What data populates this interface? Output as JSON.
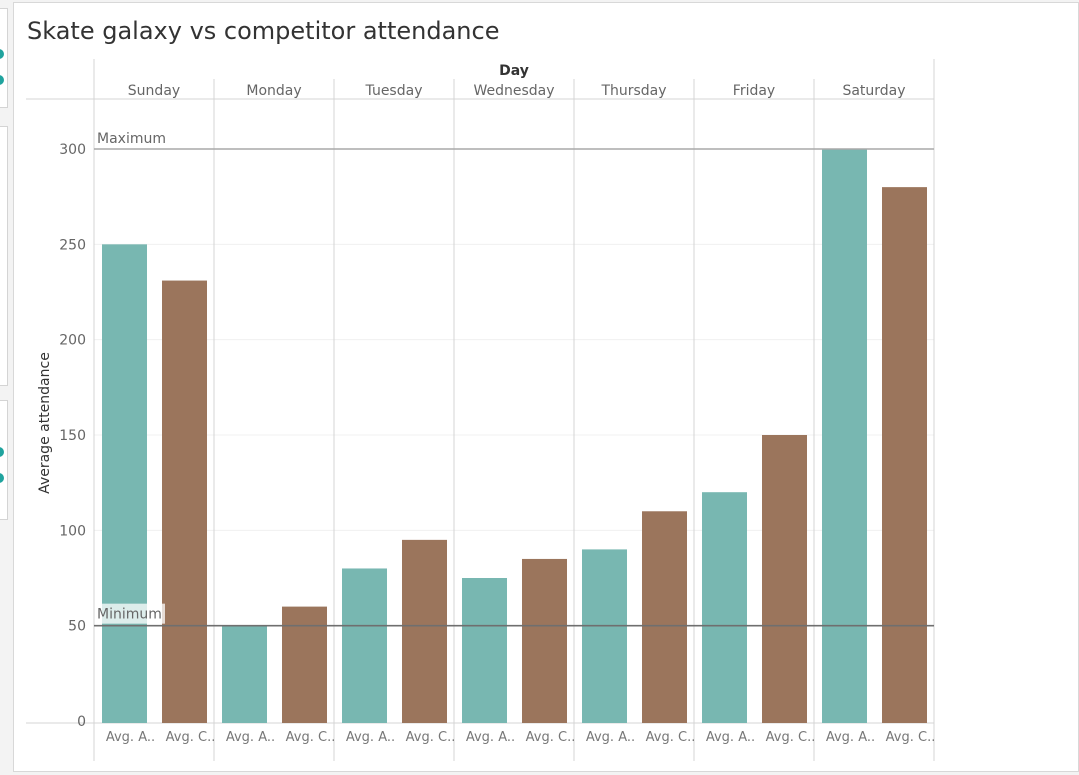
{
  "sheet": {
    "title": "Skate galaxy vs competitor attendance"
  },
  "chart_data": {
    "type": "bar",
    "column_header_title": "Day",
    "categories": [
      "Sunday",
      "Monday",
      "Tuesday",
      "Wednesday",
      "Thursday",
      "Friday",
      "Saturday"
    ],
    "bar_labels": [
      "Avg. A..",
      "Avg. C.."
    ],
    "series": [
      {
        "values": [
          250,
          50,
          80,
          75,
          90,
          120,
          300
        ],
        "color": "#78b7b1"
      },
      {
        "values": [
          231,
          60,
          95,
          85,
          110,
          150,
          280
        ],
        "color": "#9b755c"
      }
    ],
    "ylabel": "Average attendance",
    "ylim": [
      0,
      300
    ],
    "yticks": [
      0,
      50,
      100,
      150,
      200,
      250,
      300
    ],
    "grid": true,
    "reference_lines": [
      {
        "label": "Maximum",
        "value": 300,
        "color": "#a9a9a9"
      },
      {
        "label": "Minimum",
        "value": 50,
        "color": "#6f6f6f"
      }
    ]
  }
}
